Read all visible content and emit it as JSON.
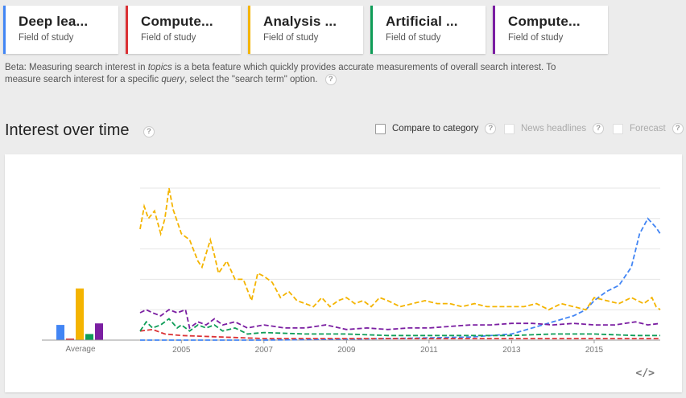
{
  "terms": [
    {
      "title": "Deep lea...",
      "subtitle": "Field of study",
      "color": "#4285f4"
    },
    {
      "title": "Compute...",
      "subtitle": "Field of study",
      "color": "#db3236"
    },
    {
      "title": "Analysis ...",
      "subtitle": "Field of study",
      "color": "#f4b400"
    },
    {
      "title": "Artificial ...",
      "subtitle": "Field of study",
      "color": "#0f9d58"
    },
    {
      "title": "Compute...",
      "subtitle": "Field of study",
      "color": "#7b1fa2"
    }
  ],
  "beta": {
    "prefix": "Beta: Measuring search interest in ",
    "topics": "topics",
    "middle": " is a beta feature which quickly provides accurate measurements of overall search interest. To measure search interest for a specific ",
    "query": "query",
    "suffix": ", select the \"search term\" option."
  },
  "section": {
    "title": "Interest over time",
    "compare": "Compare to category",
    "news": "News headlines",
    "forecast": "Forecast",
    "help_glyph": "?",
    "embed_glyph": "</>"
  },
  "chart_data": {
    "type": "line",
    "xlabel": "",
    "ylabel": "",
    "ylim": [
      0,
      100
    ],
    "x_ticks": [
      "2005",
      "2007",
      "2009",
      "2011",
      "2013",
      "2015"
    ],
    "x_range": [
      2004.0,
      2016.6
    ],
    "average_label": "Average",
    "average_values": [
      10,
      1,
      34,
      4,
      11
    ],
    "series": [
      {
        "color": "#4285f4",
        "points": [
          [
            2004.0,
            0
          ],
          [
            2007.0,
            0
          ],
          [
            2010.0,
            1
          ],
          [
            2012.0,
            2
          ],
          [
            2013.0,
            4
          ],
          [
            2013.5,
            8
          ],
          [
            2014.0,
            12
          ],
          [
            2014.5,
            16
          ],
          [
            2014.8,
            20
          ],
          [
            2015.0,
            26
          ],
          [
            2015.3,
            32
          ],
          [
            2015.6,
            36
          ],
          [
            2015.9,
            48
          ],
          [
            2016.1,
            70
          ],
          [
            2016.3,
            80
          ],
          [
            2016.5,
            74
          ],
          [
            2016.6,
            70
          ]
        ]
      },
      {
        "color": "#db3236",
        "points": [
          [
            2004.0,
            6
          ],
          [
            2004.3,
            7
          ],
          [
            2004.6,
            4
          ],
          [
            2005.0,
            3
          ],
          [
            2006.0,
            2
          ],
          [
            2007.0,
            1
          ],
          [
            2008.0,
            1
          ],
          [
            2010.0,
            1
          ],
          [
            2012.0,
            1
          ],
          [
            2014.0,
            1
          ],
          [
            2016.6,
            1
          ]
        ]
      },
      {
        "color": "#f4b400",
        "points": [
          [
            2004.0,
            73
          ],
          [
            2004.1,
            88
          ],
          [
            2004.2,
            80
          ],
          [
            2004.35,
            85
          ],
          [
            2004.5,
            70
          ],
          [
            2004.6,
            80
          ],
          [
            2004.7,
            100
          ],
          [
            2004.8,
            86
          ],
          [
            2005.0,
            70
          ],
          [
            2005.2,
            66
          ],
          [
            2005.4,
            52
          ],
          [
            2005.5,
            48
          ],
          [
            2005.7,
            66
          ],
          [
            2005.8,
            56
          ],
          [
            2005.9,
            44
          ],
          [
            2006.1,
            52
          ],
          [
            2006.3,
            40
          ],
          [
            2006.5,
            40
          ],
          [
            2006.7,
            26
          ],
          [
            2006.85,
            44
          ],
          [
            2007.0,
            42
          ],
          [
            2007.2,
            38
          ],
          [
            2007.4,
            28
          ],
          [
            2007.6,
            32
          ],
          [
            2007.8,
            26
          ],
          [
            2008.0,
            24
          ],
          [
            2008.2,
            22
          ],
          [
            2008.4,
            28
          ],
          [
            2008.6,
            22
          ],
          [
            2008.8,
            26
          ],
          [
            2009.0,
            28
          ],
          [
            2009.2,
            24
          ],
          [
            2009.4,
            26
          ],
          [
            2009.6,
            22
          ],
          [
            2009.8,
            28
          ],
          [
            2010.0,
            26
          ],
          [
            2010.3,
            22
          ],
          [
            2010.6,
            24
          ],
          [
            2010.9,
            26
          ],
          [
            2011.2,
            24
          ],
          [
            2011.5,
            24
          ],
          [
            2011.8,
            22
          ],
          [
            2012.1,
            24
          ],
          [
            2012.4,
            22
          ],
          [
            2012.7,
            22
          ],
          [
            2013.0,
            22
          ],
          [
            2013.3,
            22
          ],
          [
            2013.6,
            24
          ],
          [
            2013.9,
            20
          ],
          [
            2014.2,
            24
          ],
          [
            2014.5,
            22
          ],
          [
            2014.8,
            20
          ],
          [
            2015.0,
            28
          ],
          [
            2015.3,
            26
          ],
          [
            2015.6,
            24
          ],
          [
            2015.9,
            28
          ],
          [
            2016.2,
            24
          ],
          [
            2016.4,
            28
          ],
          [
            2016.5,
            22
          ],
          [
            2016.6,
            20
          ]
        ]
      },
      {
        "color": "#0f9d58",
        "points": [
          [
            2004.0,
            6
          ],
          [
            2004.15,
            12
          ],
          [
            2004.3,
            8
          ],
          [
            2004.5,
            10
          ],
          [
            2004.7,
            14
          ],
          [
            2004.9,
            8
          ],
          [
            2005.0,
            10
          ],
          [
            2005.2,
            6
          ],
          [
            2005.4,
            10
          ],
          [
            2005.6,
            8
          ],
          [
            2005.8,
            10
          ],
          [
            2006.0,
            6
          ],
          [
            2006.3,
            8
          ],
          [
            2006.6,
            4
          ],
          [
            2007.0,
            5
          ],
          [
            2008.0,
            4
          ],
          [
            2009.0,
            4
          ],
          [
            2010.0,
            3
          ],
          [
            2011.0,
            3
          ],
          [
            2012.0,
            3
          ],
          [
            2013.0,
            3
          ],
          [
            2014.0,
            4
          ],
          [
            2015.0,
            4
          ],
          [
            2016.0,
            3
          ],
          [
            2016.6,
            3
          ]
        ]
      },
      {
        "color": "#7b1fa2",
        "points": [
          [
            2004.0,
            18
          ],
          [
            2004.15,
            20
          ],
          [
            2004.3,
            18
          ],
          [
            2004.5,
            16
          ],
          [
            2004.7,
            20
          ],
          [
            2004.9,
            18
          ],
          [
            2005.1,
            20
          ],
          [
            2005.2,
            8
          ],
          [
            2005.4,
            12
          ],
          [
            2005.6,
            10
          ],
          [
            2005.8,
            14
          ],
          [
            2006.0,
            10
          ],
          [
            2006.3,
            12
          ],
          [
            2006.6,
            8
          ],
          [
            2007.0,
            10
          ],
          [
            2007.5,
            8
          ],
          [
            2008.0,
            8
          ],
          [
            2008.5,
            10
          ],
          [
            2009.0,
            7
          ],
          [
            2009.5,
            8
          ],
          [
            2010.0,
            7
          ],
          [
            2010.5,
            8
          ],
          [
            2011.0,
            8
          ],
          [
            2011.5,
            9
          ],
          [
            2012.0,
            10
          ],
          [
            2012.5,
            10
          ],
          [
            2013.0,
            11
          ],
          [
            2013.5,
            11
          ],
          [
            2014.0,
            10
          ],
          [
            2014.5,
            11
          ],
          [
            2015.0,
            10
          ],
          [
            2015.5,
            10
          ],
          [
            2016.0,
            12
          ],
          [
            2016.3,
            10
          ],
          [
            2016.6,
            11
          ]
        ]
      }
    ]
  }
}
